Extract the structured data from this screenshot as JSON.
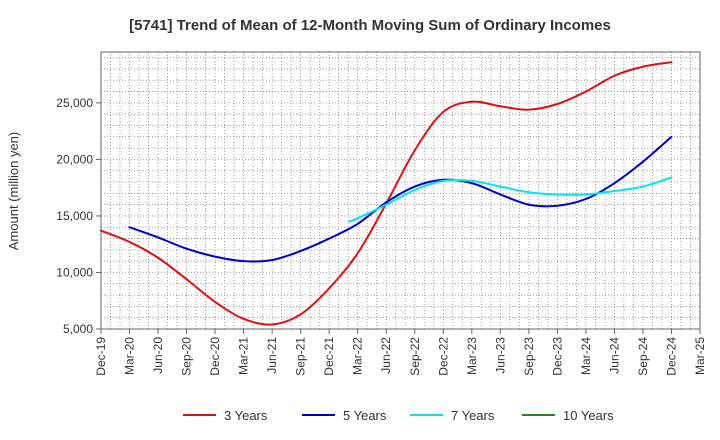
{
  "chart_data": {
    "type": "line",
    "title": "[5741]  Trend of Mean of 12-Month Moving Sum of Ordinary Incomes",
    "xlabel": "",
    "ylabel": "Amount (million yen)",
    "ylim": [
      5000,
      29500
    ],
    "y_ticks": [
      5000,
      10000,
      15000,
      20000,
      25000
    ],
    "y_tick_labels": [
      "5,000",
      "10,000",
      "15,000",
      "20,000",
      "25,000"
    ],
    "x_ticks": [
      "Dec-19",
      "Mar-20",
      "Jun-20",
      "Sep-20",
      "Dec-20",
      "Mar-21",
      "Jun-21",
      "Sep-21",
      "Dec-21",
      "Mar-22",
      "Jun-22",
      "Sep-22",
      "Dec-22",
      "Mar-23",
      "Jun-23",
      "Sep-23",
      "Dec-23",
      "Mar-24",
      "Jun-24",
      "Sep-24",
      "Dec-24",
      "Mar-25"
    ],
    "grid": true,
    "legend_position": "bottom",
    "series": [
      {
        "name": "3 Years",
        "color": "#dd1111",
        "points": [
          [
            0,
            13700
          ],
          [
            1,
            12700
          ],
          [
            2,
            11300
          ],
          [
            3,
            9400
          ],
          [
            4,
            7400
          ],
          [
            5,
            5900
          ],
          [
            6,
            5400
          ],
          [
            7,
            6300
          ],
          [
            8,
            8600
          ],
          [
            9,
            11700
          ],
          [
            10,
            16100
          ],
          [
            11,
            20800
          ],
          [
            12,
            24200
          ],
          [
            13,
            25100
          ],
          [
            14,
            24700
          ],
          [
            15,
            24400
          ],
          [
            16,
            24900
          ],
          [
            17,
            26000
          ],
          [
            18,
            27400
          ],
          [
            19,
            28200
          ],
          [
            20,
            28600
          ]
        ]
      },
      {
        "name": "5 Years",
        "color": "#0000cc",
        "points": [
          [
            1,
            14000
          ],
          [
            2,
            13100
          ],
          [
            3,
            12100
          ],
          [
            4,
            11400
          ],
          [
            5,
            11000
          ],
          [
            6,
            11100
          ],
          [
            7,
            11900
          ],
          [
            8,
            13000
          ],
          [
            9,
            14300
          ],
          [
            10,
            16200
          ],
          [
            11,
            17600
          ],
          [
            12,
            18200
          ],
          [
            13,
            17900
          ],
          [
            14,
            16900
          ],
          [
            15,
            16000
          ],
          [
            16,
            15900
          ],
          [
            17,
            16500
          ],
          [
            18,
            17900
          ],
          [
            19,
            19800
          ],
          [
            20,
            22000
          ]
        ]
      },
      {
        "name": "7 Years",
        "color": "#00e5ee",
        "points": [
          [
            8.7,
            14500
          ],
          [
            9,
            14800
          ],
          [
            10,
            16000
          ],
          [
            11,
            17300
          ],
          [
            12,
            18100
          ],
          [
            13,
            18100
          ],
          [
            14,
            17600
          ],
          [
            15,
            17100
          ],
          [
            16,
            16900
          ],
          [
            17,
            16900
          ],
          [
            18,
            17200
          ],
          [
            19,
            17600
          ],
          [
            20,
            18400
          ]
        ]
      },
      {
        "name": "10 Years",
        "color": "#228822",
        "points": []
      }
    ]
  }
}
